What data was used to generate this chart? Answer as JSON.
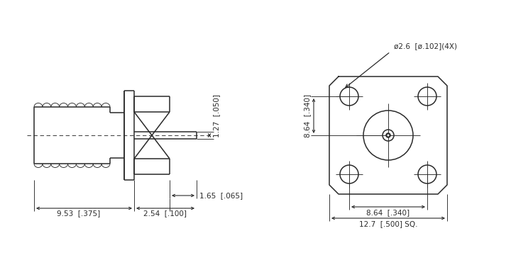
{
  "bg_color": "#ffffff",
  "line_color": "#2a2a2a",
  "line_width": 1.1,
  "thin_line": 0.65,
  "font_size": 7.5,
  "annotations": {
    "dim_1_27": "1.27  [.050]",
    "dim_9_53": "9.53  [.375]",
    "dim_2_54": "2.54  [.100]",
    "dim_1_65": "1.65  [.065]",
    "dim_dia": "ø2.6  [ø.102](4X)",
    "dim_8_64_v": "8.64  [.340]",
    "dim_8_64_h": "8.64  [.340]",
    "dim_12_7": "12.7  [.500] SQ."
  }
}
